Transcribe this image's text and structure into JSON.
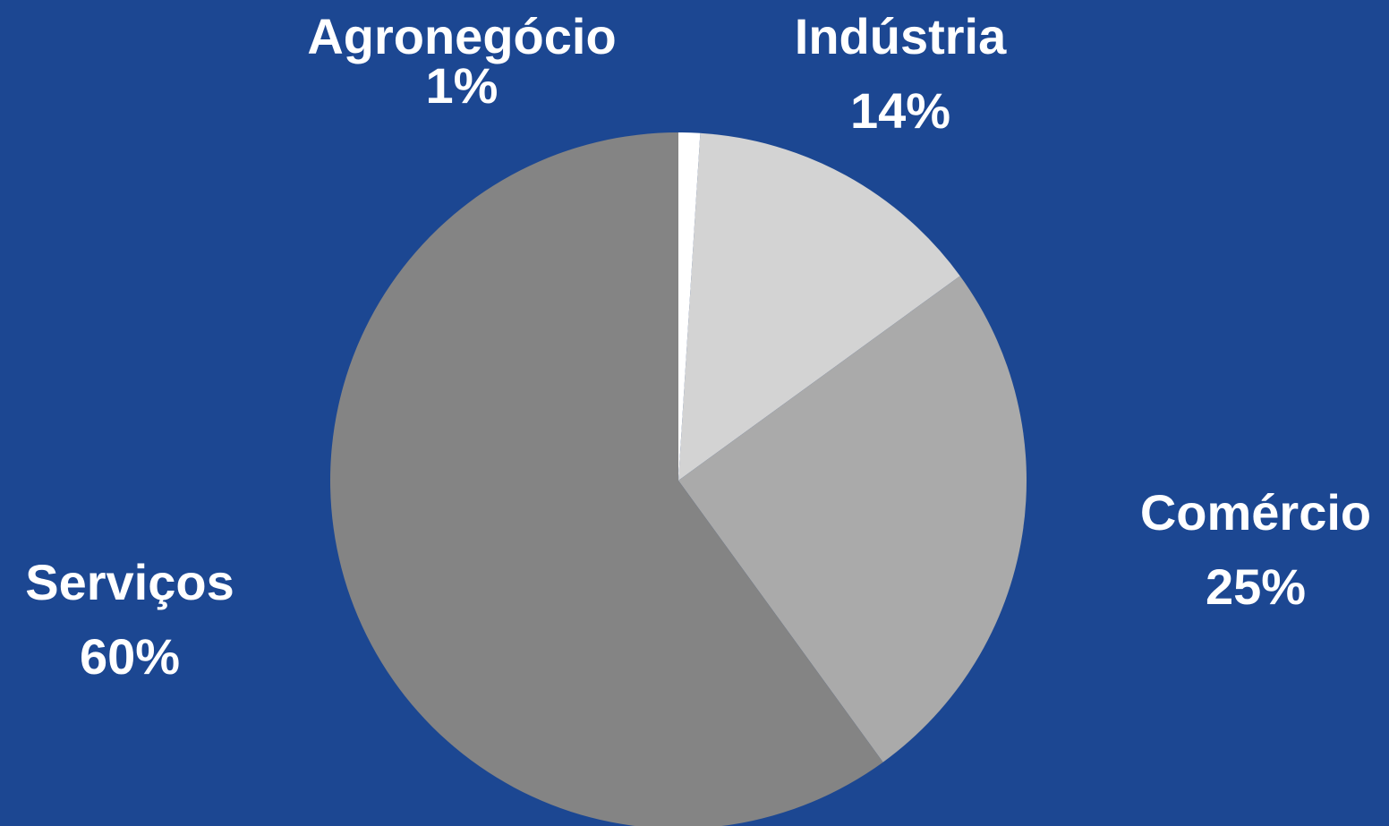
{
  "chart_data": {
    "type": "pie",
    "categories": [
      "Agronegócio",
      "Indústria",
      "Comércio",
      "Serviços"
    ],
    "values": [
      1,
      14,
      25,
      60
    ],
    "value_labels": [
      "1%",
      "14%",
      "25%",
      "60%"
    ],
    "colors": [
      "#ffffff",
      "#d3d3d3",
      "#aaaaaa",
      "#848484"
    ]
  }
}
